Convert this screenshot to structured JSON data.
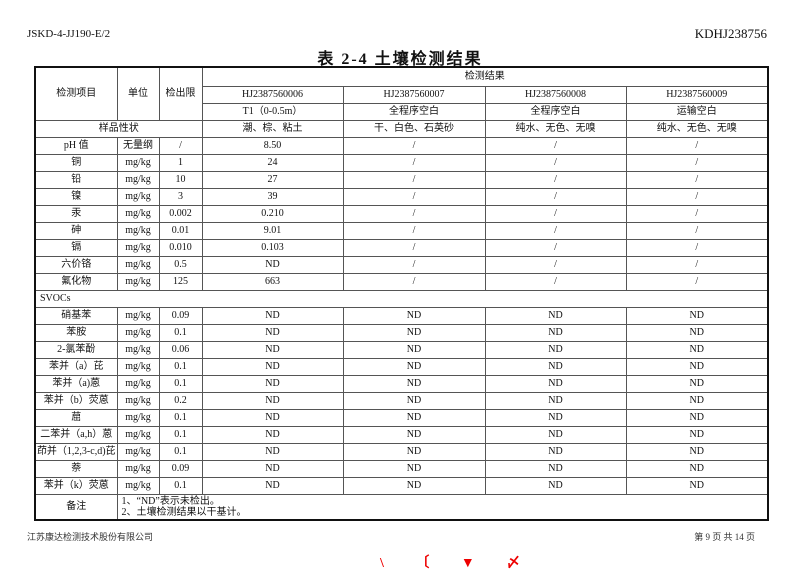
{
  "header": {
    "doc_code": "JSKD-4-JJ190-E/2",
    "report_no": "KDHJ238756"
  },
  "title": "表 2-4 土壤检测结果",
  "table": {
    "h_item": "检测项目",
    "h_unit": "单位",
    "h_limit": "检出限",
    "h_results": "检测结果",
    "samples": [
      "HJ2387560006",
      "HJ2387560007",
      "HJ2387560008",
      "HJ2387560009"
    ],
    "points": [
      "T1（0-0.5m）",
      "全程序空白",
      "全程序空白",
      "运输空白"
    ],
    "h_state": "样品性状",
    "states": [
      "潮、棕、粘土",
      "干、白色、石英砂",
      "纯水、无色、无嗅",
      "纯水、无色、无嗅"
    ],
    "rows1": [
      [
        "pH 值",
        "无量纲",
        "/",
        "8.50",
        "/",
        "/",
        "/"
      ],
      [
        "铜",
        "mg/kg",
        "1",
        "24",
        "/",
        "/",
        "/"
      ],
      [
        "铅",
        "mg/kg",
        "10",
        "27",
        "/",
        "/",
        "/"
      ],
      [
        "镍",
        "mg/kg",
        "3",
        "39",
        "/",
        "/",
        "/"
      ],
      [
        "汞",
        "mg/kg",
        "0.002",
        "0.210",
        "/",
        "/",
        "/"
      ],
      [
        "砷",
        "mg/kg",
        "0.01",
        "9.01",
        "/",
        "/",
        "/"
      ],
      [
        "镉",
        "mg/kg",
        "0.010",
        "0.103",
        "/",
        "/",
        "/"
      ],
      [
        "六价铬",
        "mg/kg",
        "0.5",
        "ND",
        "/",
        "/",
        "/"
      ],
      [
        "氟化物",
        "mg/kg",
        "125",
        "663",
        "/",
        "/",
        "/"
      ]
    ],
    "group": "SVOCs",
    "rows2": [
      [
        "硝基苯",
        "mg/kg",
        "0.09",
        "ND",
        "ND",
        "ND",
        "ND"
      ],
      [
        "苯胺",
        "mg/kg",
        "0.1",
        "ND",
        "ND",
        "ND",
        "ND"
      ],
      [
        "2-氯苯酚",
        "mg/kg",
        "0.06",
        "ND",
        "ND",
        "ND",
        "ND"
      ],
      [
        "苯并（a）芘",
        "mg/kg",
        "0.1",
        "ND",
        "ND",
        "ND",
        "ND"
      ],
      [
        "苯并（a)蒽",
        "mg/kg",
        "0.1",
        "ND",
        "ND",
        "ND",
        "ND"
      ],
      [
        "苯并（b）荧蒽",
        "mg/kg",
        "0.2",
        "ND",
        "ND",
        "ND",
        "ND"
      ],
      [
        "䓛",
        "mg/kg",
        "0.1",
        "ND",
        "ND",
        "ND",
        "ND"
      ],
      [
        "二苯并（a,h）蒽",
        "mg/kg",
        "0.1",
        "ND",
        "ND",
        "ND",
        "ND"
      ],
      [
        "茚并（1,2,3-c,d)芘",
        "mg/kg",
        "0.1",
        "ND",
        "ND",
        "ND",
        "ND"
      ],
      [
        "萘",
        "mg/kg",
        "0.09",
        "ND",
        "ND",
        "ND",
        "ND"
      ],
      [
        "苯并（k）荧蒽",
        "mg/kg",
        "0.1",
        "ND",
        "ND",
        "ND",
        "ND"
      ]
    ],
    "note_label": "备注",
    "notes": [
      "1、“ND”表示未检出。",
      "2、土壤检测结果以干基计。"
    ]
  },
  "footer": {
    "company": "江苏康达检测技术股份有限公司",
    "page": "第 9 页 共 14 页"
  }
}
